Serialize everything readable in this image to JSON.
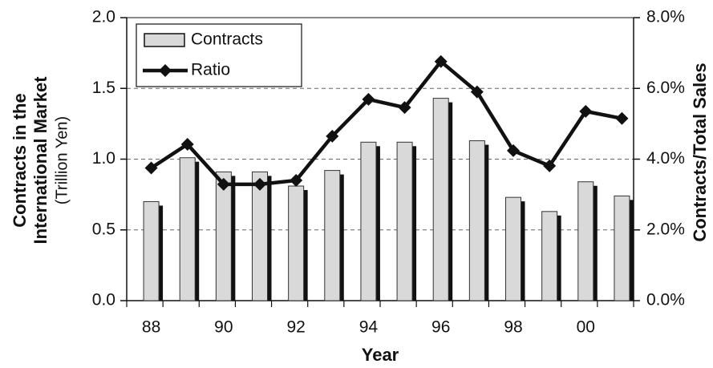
{
  "chart_data": {
    "type": "bar",
    "xlabel": "Year",
    "ylabel": [
      "Contracts  in the",
      "International Market",
      "(Trillion Yen)"
    ],
    "y2label": "Contracts/Total Sales",
    "categories": [
      "88",
      null,
      "90",
      null,
      "92",
      null,
      "94",
      null,
      "96",
      null,
      "98",
      null,
      "00",
      null
    ],
    "series": [
      {
        "name": "Contracts",
        "type": "bar",
        "color": "#d9d9d9",
        "values": [
          0.7,
          1.01,
          0.91,
          0.91,
          0.81,
          0.92,
          1.12,
          1.12,
          1.43,
          1.13,
          0.73,
          0.63,
          0.84,
          0.74
        ]
      },
      {
        "name": "Ratio",
        "type": "line",
        "axis": "y2",
        "color": "#111111",
        "values": [
          3.75,
          4.42,
          3.29,
          3.29,
          3.4,
          4.65,
          5.69,
          5.46,
          6.76,
          5.9,
          4.24,
          3.81,
          5.35,
          5.15
        ]
      }
    ],
    "ylim": [
      0,
      2
    ],
    "yticks": [
      {
        "value": 0,
        "label": "0.0"
      },
      0.5,
      {
        "value": 1,
        "label": "1.0"
      },
      1.5,
      {
        "value": 2,
        "label": "2.0"
      }
    ],
    "y2lim": [
      0,
      8
    ],
    "y2ticks": [
      {
        "value": 0,
        "label": "0.0%"
      },
      {
        "value": 2,
        "label": "2.0%"
      },
      {
        "value": 4,
        "label": "4.0%"
      },
      {
        "value": 6,
        "label": "6.0%"
      },
      {
        "value": 8,
        "label": "8.0%"
      }
    ],
    "grid": true,
    "legend": "upper left"
  }
}
